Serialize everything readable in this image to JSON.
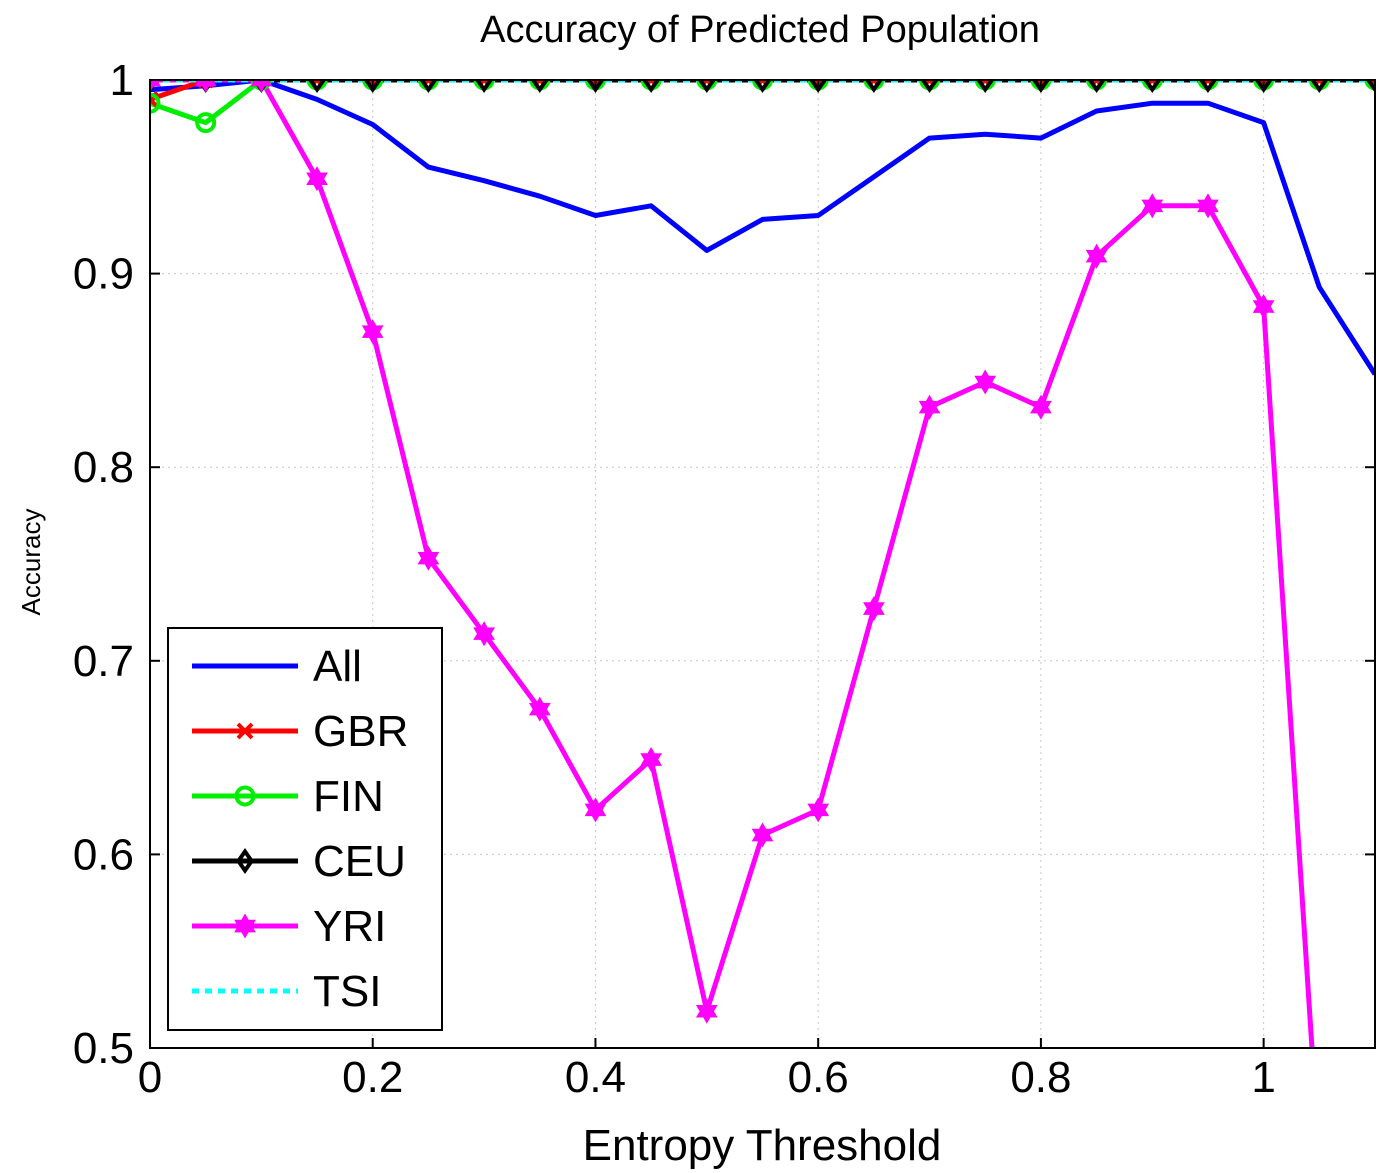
{
  "chart_data": {
    "type": "line",
    "title": "Accuracy of Predicted Population",
    "xlabel": "Entropy Threshold",
    "ylabel": "Accuracy",
    "xlim": [
      0,
      1.1
    ],
    "ylim": [
      0.5,
      1.0
    ],
    "xticks": [
      0,
      0.2,
      0.4,
      0.6,
      0.8,
      1
    ],
    "xtick_labels": [
      "0",
      "0.2",
      "0.4",
      "0.6",
      "0.8",
      "1"
    ],
    "yticks": [
      0.5,
      0.6,
      0.7,
      0.8,
      0.9,
      1
    ],
    "ytick_labels": [
      "0.5",
      "0.6",
      "0.7",
      "0.8",
      "0.9",
      "1"
    ],
    "grid": true,
    "legend_position": "bottom-left",
    "x": [
      0,
      0.05,
      0.1,
      0.15,
      0.2,
      0.25,
      0.3,
      0.35,
      0.4,
      0.45,
      0.5,
      0.55,
      0.6,
      0.65,
      0.7,
      0.75,
      0.8,
      0.85,
      0.9,
      0.95,
      1.0,
      1.05,
      1.1
    ],
    "series": [
      {
        "name": "All",
        "color": "#0000ff",
        "line": "solid",
        "marker": "none",
        "values": [
          0.995,
          0.997,
          1.0,
          0.99,
          0.977,
          0.955,
          0.948,
          0.94,
          0.93,
          0.935,
          0.912,
          0.928,
          0.93,
          0.95,
          0.97,
          0.972,
          0.97,
          0.984,
          0.988,
          0.988,
          0.978,
          0.893,
          0.848
        ]
      },
      {
        "name": "GBR",
        "color": "#ff0000",
        "line": "solid",
        "marker": "x",
        "values": [
          0.99,
          1.0,
          1.0,
          1.0,
          1.0,
          1.0,
          1.0,
          1.0,
          1.0,
          1.0,
          1.0,
          1.0,
          1.0,
          1.0,
          1.0,
          1.0,
          1.0,
          1.0,
          1.0,
          1.0,
          1.0,
          1.0,
          1.0
        ]
      },
      {
        "name": "FIN",
        "color": "#00ee00",
        "line": "solid",
        "marker": "circle",
        "values": [
          0.988,
          0.978,
          1.0,
          1.0,
          1.0,
          1.0,
          1.0,
          1.0,
          1.0,
          1.0,
          1.0,
          1.0,
          1.0,
          1.0,
          1.0,
          1.0,
          1.0,
          1.0,
          1.0,
          1.0,
          1.0,
          1.0,
          1.0
        ]
      },
      {
        "name": "CEU",
        "color": "#000000",
        "line": "solid",
        "marker": "diamond",
        "values": [
          1.0,
          1.0,
          1.0,
          1.0,
          1.0,
          1.0,
          1.0,
          1.0,
          1.0,
          1.0,
          1.0,
          1.0,
          1.0,
          1.0,
          1.0,
          1.0,
          1.0,
          1.0,
          1.0,
          1.0,
          1.0,
          1.0,
          1.0
        ]
      },
      {
        "name": "YRI",
        "color": "#ff00ff",
        "line": "solid",
        "marker": "hexagram",
        "values": [
          1.0,
          1.0,
          1.0,
          0.949,
          0.87,
          0.753,
          0.714,
          0.675,
          0.623,
          0.649,
          0.519,
          0.61,
          0.623,
          0.727,
          0.831,
          0.844,
          0.831,
          0.909,
          0.935,
          0.935,
          0.883,
          0.442,
          null
        ]
      },
      {
        "name": "TSI",
        "color": "#00ffff",
        "line": "dotted",
        "marker": "none",
        "values": [
          1.0,
          1.0,
          1.0,
          1.0,
          1.0,
          1.0,
          1.0,
          1.0,
          1.0,
          1.0,
          1.0,
          1.0,
          1.0,
          1.0,
          1.0,
          1.0,
          1.0,
          1.0,
          1.0,
          1.0,
          1.0,
          1.0,
          1.0
        ]
      }
    ]
  }
}
